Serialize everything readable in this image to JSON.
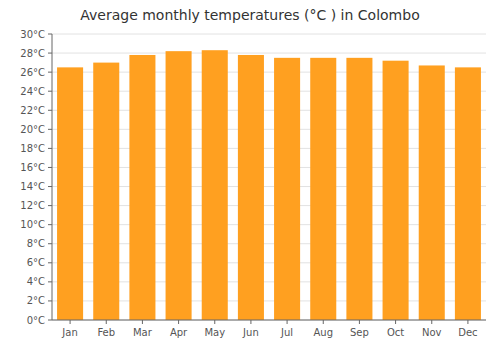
{
  "chart_data": {
    "type": "bar",
    "title": "Average monthly temperatures (°C ) in Colombo",
    "categories": [
      "Jan",
      "Feb",
      "Mar",
      "Apr",
      "May",
      "Jun",
      "Jul",
      "Aug",
      "Sep",
      "Oct",
      "Nov",
      "Dec"
    ],
    "values": [
      26.5,
      27.0,
      27.8,
      28.2,
      28.3,
      27.8,
      27.5,
      27.5,
      27.5,
      27.2,
      26.7,
      26.5
    ],
    "color": "#FFA020",
    "ylim": [
      0,
      30
    ],
    "yticks": [
      {
        "value": 0,
        "label": "0°C"
      },
      {
        "value": 2,
        "label": "2°C"
      },
      {
        "value": 4,
        "label": "4°C"
      },
      {
        "value": 6,
        "label": "6°C"
      },
      {
        "value": 8,
        "label": "8°C"
      },
      {
        "value": 10,
        "label": "10°C"
      },
      {
        "value": 12,
        "label": "12°C"
      },
      {
        "value": 14,
        "label": "14°C"
      },
      {
        "value": 16,
        "label": "16°C"
      },
      {
        "value": 18,
        "label": "18°C"
      },
      {
        "value": 20,
        "label": "20°C"
      },
      {
        "value": 22,
        "label": "22°C"
      },
      {
        "value": 24,
        "label": "24°C"
      },
      {
        "value": 26,
        "label": "26°C"
      },
      {
        "value": 28,
        "label": "28°C"
      },
      {
        "value": 30,
        "label": "30°C"
      }
    ],
    "grid": true
  }
}
